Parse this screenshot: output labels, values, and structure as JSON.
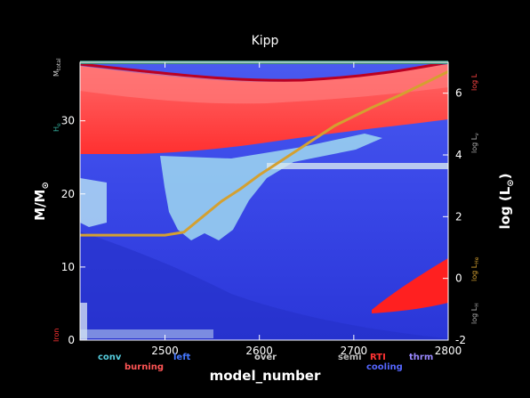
{
  "chart_data": {
    "type": "area",
    "title": "Kipp",
    "xlabel": "model_number",
    "ylabel": "M/M",
    "ylabel_sub": "⊙",
    "y2label": "log (L",
    "y2label_sub": "⊙",
    "y2label_tail": ")",
    "xlim": [
      2410,
      2800
    ],
    "ylim": [
      0,
      38
    ],
    "y2lim": [
      -2,
      7
    ],
    "xticks": [
      2500,
      2600,
      2700,
      2800
    ],
    "yticks": [
      0,
      10,
      20,
      30
    ],
    "y2ticks": [
      -2,
      0,
      2,
      4,
      6
    ],
    "luminosity_series": {
      "name": "log_L",
      "x": [
        2410,
        2440,
        2470,
        2500,
        2520,
        2540,
        2560,
        2580,
        2600,
        2620,
        2650,
        2680,
        2700,
        2720,
        2750,
        2780,
        2800
      ],
      "y": [
        1.4,
        1.4,
        1.4,
        1.4,
        1.5,
        2.0,
        2.5,
        2.9,
        3.35,
        3.75,
        4.35,
        4.95,
        5.25,
        5.55,
        5.95,
        6.4,
        6.7
      ]
    },
    "right_axis_labels": [
      "log L",
      "log L",
      "log L",
      "log L"
    ],
    "right_axis_label_subs": [
      "",
      "ν",
      "He",
      "H"
    ],
    "left_axis_labels": [
      "M",
      "H",
      "Iron"
    ],
    "left_axis_label_subs": [
      "total",
      "e",
      ""
    ],
    "legend": [
      "conv",
      "burning",
      "left",
      "over",
      "semi",
      "RTI",
      "cooling",
      "thrm"
    ],
    "colors": {
      "background": "#000000",
      "burning": "#ff3333",
      "cooling": "#3344ee",
      "convective": "#9fd8f0",
      "luminosity": "#d4a030",
      "envelope_edge": "#bb0022",
      "surface": "#3a8a7a"
    }
  }
}
